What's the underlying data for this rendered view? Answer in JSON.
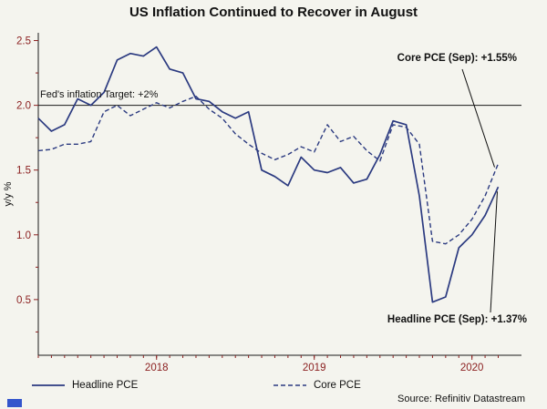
{
  "chart_data": {
    "type": "line",
    "title": "US Inflation Continued to Recover in August",
    "ylabel": "y/y %",
    "ylim": [
      0.07,
      2.56
    ],
    "y_ticks": [
      0.5,
      1.0,
      1.5,
      2.0,
      2.5
    ],
    "x_tick_labels": [
      "2018",
      "2019",
      "2020"
    ],
    "x_tick_positions": [
      9,
      21,
      33
    ],
    "x_start": "2017-10",
    "x_unit": "month",
    "grid": false,
    "legend_position": "bottom",
    "reference_line": {
      "value": 2.0,
      "label": "Fed's inflation Target: +2%"
    },
    "series": [
      {
        "name": "Headline PCE",
        "style": "solid",
        "values": [
          1.9,
          1.8,
          1.85,
          2.05,
          2.0,
          2.1,
          2.35,
          2.4,
          2.38,
          2.45,
          2.28,
          2.25,
          2.05,
          2.03,
          1.95,
          1.9,
          1.95,
          1.5,
          1.45,
          1.38,
          1.6,
          1.5,
          1.48,
          1.52,
          1.4,
          1.43,
          1.62,
          1.88,
          1.85,
          1.3,
          0.48,
          0.52,
          0.9,
          1.0,
          1.15,
          1.37
        ]
      },
      {
        "name": "Core PCE",
        "style": "dashed",
        "values": [
          1.65,
          1.66,
          1.7,
          1.7,
          1.72,
          1.95,
          2.0,
          1.92,
          1.97,
          2.02,
          1.98,
          2.03,
          2.07,
          1.97,
          1.9,
          1.78,
          1.7,
          1.63,
          1.58,
          1.62,
          1.68,
          1.64,
          1.85,
          1.72,
          1.76,
          1.65,
          1.57,
          1.85,
          1.83,
          1.7,
          0.95,
          0.93,
          1.0,
          1.12,
          1.3,
          1.55
        ]
      }
    ],
    "annotations": [
      {
        "text": "Core PCE (Sep): +1.55%",
        "points_to_series": "Core PCE"
      },
      {
        "text": "Headline PCE (Sep): +1.37%",
        "points_to_series": "Headline PCE"
      }
    ],
    "source": "Source: Refinitiv Datastream",
    "colors": {
      "line": "#2b3a80",
      "tick": "#8b2020",
      "axis": "#1a1a1a",
      "annotation": "#111111",
      "background": "#f4f4ee",
      "logo_mark": "#3355cc"
    }
  }
}
